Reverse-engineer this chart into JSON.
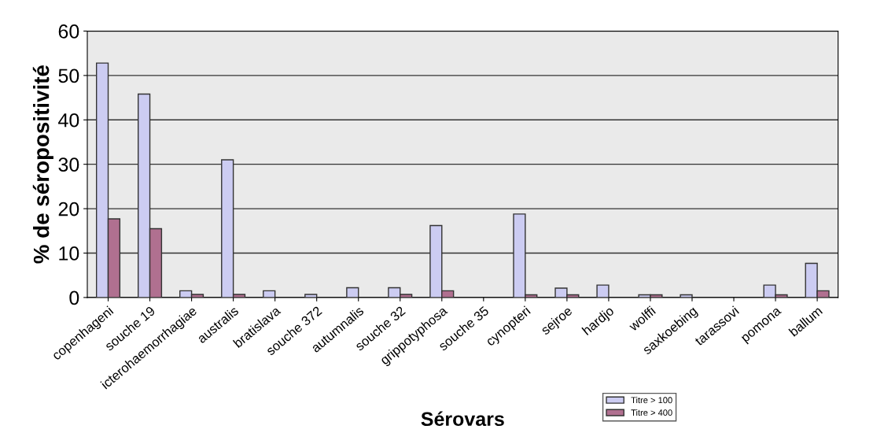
{
  "chart_data": {
    "type": "bar",
    "xlabel": "Sérovars",
    "ylabel": "% de séropositivité",
    "categories": [
      "copenhageni",
      "souche 19",
      "icterohaemorrhagiae",
      "australis",
      "bratislava",
      "souche 372",
      "autumnalis",
      "souche 32",
      "grippotyphosa",
      "souche 35",
      "cynopteri",
      "sejroe",
      "hardjo",
      "wolffi",
      "saxkoebing",
      "tarassovi",
      "pomona",
      "ballum"
    ],
    "series": [
      {
        "name": "Titre > 100",
        "color": "#ccccf2",
        "values": [
          52.8,
          45.8,
          1.5,
          31,
          1.5,
          0.7,
          2.2,
          2.2,
          16.2,
          0,
          18.8,
          2.1,
          2.8,
          0.6,
          0.6,
          0,
          2.8,
          7.7
        ]
      },
      {
        "name": "Titre > 400",
        "color": "#b07090",
        "values": [
          17.7,
          15.5,
          0.7,
          0.7,
          0,
          0,
          0,
          0.7,
          1.5,
          0,
          0.6,
          0.6,
          0,
          0.6,
          0,
          0,
          0.6,
          1.5
        ]
      }
    ],
    "ylim": [
      0,
      60
    ],
    "yticks": [
      0,
      10,
      20,
      30,
      40,
      50,
      60
    ],
    "grid": "y",
    "legend": "bottom right"
  }
}
